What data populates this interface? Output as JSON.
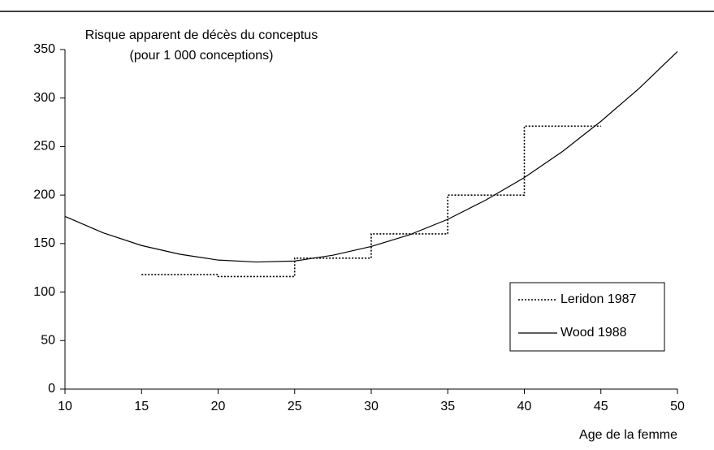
{
  "chart_data": {
    "type": "line",
    "title": [
      "Risque apparent de décès du conceptus",
      "(pour 1 000 conceptions)"
    ],
    "x_label": "Age de la femme",
    "series": [
      {
        "name": "Leridon 1987",
        "color": "#000000",
        "style": "dotted",
        "x": [
          15,
          20,
          20,
          25,
          25,
          30,
          30,
          35,
          35,
          40,
          40,
          45
        ],
        "values": [
          118,
          118,
          116,
          116,
          135,
          135,
          160,
          160,
          200,
          200,
          271,
          271
        ]
      },
      {
        "name": "Wood 1988",
        "color": "#000000",
        "style": "solid",
        "x": [
          10,
          12.5,
          15,
          17.5,
          20,
          22.5,
          25,
          27.5,
          30,
          32.5,
          35,
          37.5,
          40,
          42.5,
          45,
          47.5,
          50
        ],
        "values": [
          178,
          161,
          148,
          139,
          133,
          131,
          132,
          138,
          147,
          159,
          175,
          195,
          218,
          245,
          276,
          310,
          348
        ]
      }
    ],
    "xlim": [
      10,
      50
    ],
    "xticks": [
      10,
      15,
      20,
      25,
      30,
      35,
      40,
      45,
      50
    ],
    "ylim": [
      0,
      350
    ],
    "yticks": [
      0,
      50,
      100,
      150,
      200,
      250,
      300,
      350
    ],
    "grid": false,
    "legend": "lower right"
  }
}
